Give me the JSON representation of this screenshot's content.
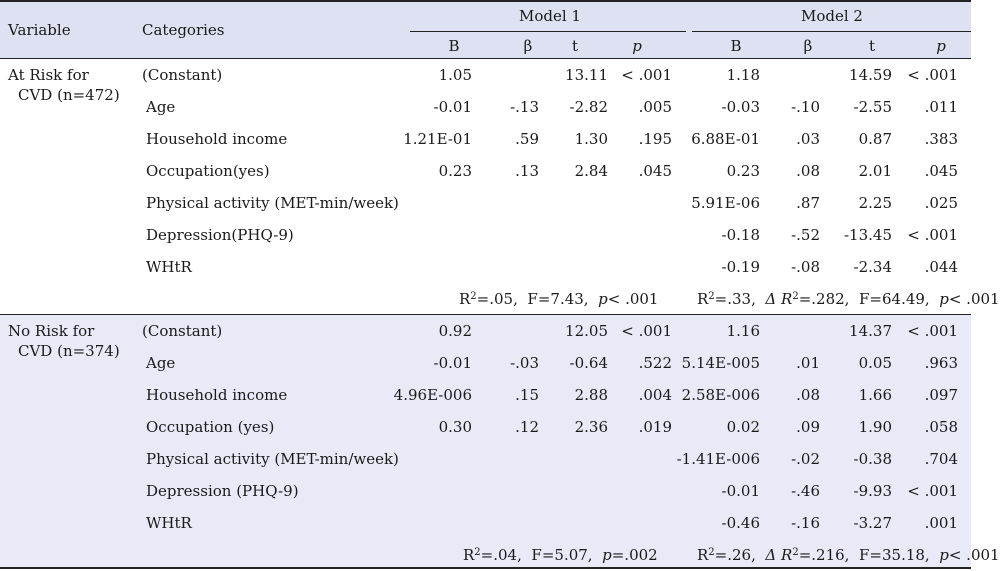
{
  "header": {
    "variable": "Variable",
    "categories": "Categories",
    "model1": "Model 1",
    "model2": "Model 2",
    "cols": [
      "B",
      "β",
      "t",
      "p",
      "B",
      "β",
      "t",
      "p"
    ]
  },
  "groups": [
    {
      "label_line1": "At Risk for",
      "label_line2": "CVD (n=472)",
      "rows": [
        {
          "cat": "(Constant)",
          "m1": [
            "1.05",
            "",
            "13.11",
            "< .001"
          ],
          "m2": [
            "1.18",
            "",
            "14.59",
            "< .001"
          ]
        },
        {
          "cat": "Age",
          "m1": [
            "-0.01",
            "-.13",
            "-2.82",
            ".005"
          ],
          "m2": [
            "-0.03",
            "-.10",
            "-2.55",
            ".011"
          ]
        },
        {
          "cat": "Household income",
          "m1": [
            "1.21E-01",
            ".59",
            "1.30",
            ".195"
          ],
          "m2": [
            "6.88E-01",
            ".03",
            "0.87",
            ".383"
          ]
        },
        {
          "cat": "Occupation(yes)",
          "m1": [
            "0.23",
            ".13",
            "2.84",
            ".045"
          ],
          "m2": [
            "0.23",
            ".08",
            "2.01",
            ".045"
          ]
        },
        {
          "cat": "Physical activity (MET-min/week)",
          "m1": [
            "",
            "",
            "",
            ""
          ],
          "m2": [
            "5.91E-06",
            ".87",
            "2.25",
            ".025"
          ]
        },
        {
          "cat": "Depression(PHQ-9)",
          "m1": [
            "",
            "",
            "",
            ""
          ],
          "m2": [
            "-0.18",
            "-.52",
            "-13.45",
            "< .001"
          ]
        },
        {
          "cat": "WHtR",
          "m1": [
            "",
            "",
            "",
            ""
          ],
          "m2": [
            "-0.19",
            "-.08",
            "-2.34",
            ".044"
          ]
        }
      ],
      "summary1": {
        "r2": "=.05,",
        "f": "F=7.43,",
        "p_letter": "p",
        "p_val": "< .001"
      },
      "summary2": {
        "r2": "=.33,",
        "delta": "Δ R",
        "delta_val": "=.282,",
        "f": "F=64.49,",
        "p_letter": "p",
        "p_val": "< .001"
      }
    },
    {
      "label_line1": "No Risk for",
      "label_line2": "CVD (n=374)",
      "rows": [
        {
          "cat": "(Constant)",
          "m1": [
            "0.92",
            "",
            "12.05",
            "< .001"
          ],
          "m2": [
            "1.16",
            "",
            "14.37",
            "< .001"
          ]
        },
        {
          "cat": "Age",
          "m1": [
            "-0.01",
            "-.03",
            "-0.64",
            ".522"
          ],
          "m2": [
            "5.14E-005",
            ".01",
            "0.05",
            ".963"
          ]
        },
        {
          "cat": "Household income",
          "m1": [
            "4.96E-006",
            ".15",
            "2.88",
            ".004"
          ],
          "m2": [
            "2.58E-006",
            ".08",
            "1.66",
            ".097"
          ]
        },
        {
          "cat": "Occupation (yes)",
          "m1": [
            "0.30",
            ".12",
            "2.36",
            ".019"
          ],
          "m2": [
            "0.02",
            ".09",
            "1.90",
            ".058"
          ]
        },
        {
          "cat": "Physical activity (MET-min/week)",
          "m1": [
            "",
            "",
            "",
            ""
          ],
          "m2": [
            "-1.41E-006",
            "-.02",
            "-0.38",
            ".704"
          ]
        },
        {
          "cat": "Depression (PHQ-9)",
          "m1": [
            "",
            "",
            "",
            ""
          ],
          "m2": [
            "-0.01",
            "-.46",
            "-9.93",
            "< .001"
          ]
        },
        {
          "cat": "WHtR",
          "m1": [
            "",
            "",
            "",
            ""
          ],
          "m2": [
            "-0.46",
            "-.16",
            "-3.27",
            ".001"
          ]
        }
      ],
      "summary1": {
        "r2": "=.04,",
        "f": "F=5.07,",
        "p_letter": "p",
        "p_val": "=.002"
      },
      "summary2": {
        "r2": "=.26,",
        "delta": "Δ R",
        "delta_val": "=.216,",
        "f": "F=35.18,",
        "p_letter": "p",
        "p_val": "< .001"
      }
    }
  ]
}
